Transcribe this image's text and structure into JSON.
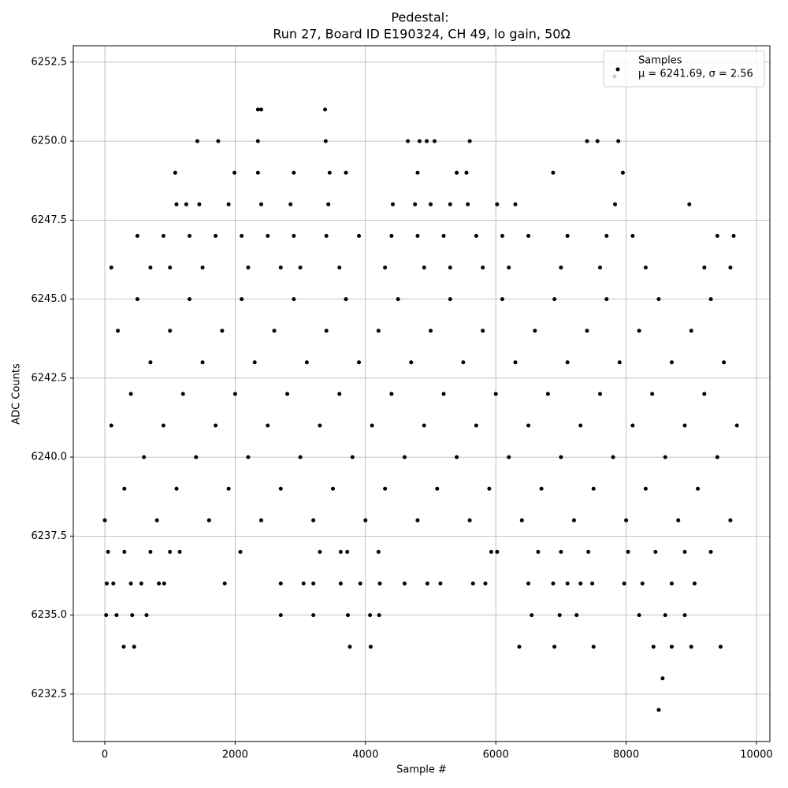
{
  "chart_data": {
    "type": "scatter",
    "title": "Pedestal:",
    "subtitle": "Run 27, Board ID E190324, CH 49, lo gain, 50Ω",
    "x_label": "Sample #",
    "y_label": "ADC Counts",
    "legend_note": "μ = 6241.69, σ = 2.56",
    "legend": "upper right",
    "grid": true,
    "xlim": [
      -484,
      10206
    ],
    "ylim": [
      6231.0,
      6253.02
    ],
    "xticks": [
      0,
      2000,
      4000,
      6000,
      8000,
      10000
    ],
    "yticks": [
      {
        "value": 6232.5,
        "label": "6232.5"
      },
      {
        "value": 6235,
        "label": "6235.0"
      },
      {
        "value": 6237.5,
        "label": "6237.5"
      },
      {
        "value": 6240,
        "label": "6240.0"
      },
      {
        "value": 6242.5,
        "label": "6242.5"
      },
      {
        "value": 6245,
        "label": "6245.0"
      },
      {
        "value": 6247.5,
        "label": "6247.5"
      },
      {
        "value": 6250,
        "label": "6250.0"
      },
      {
        "value": 6252.5,
        "label": "6252.5"
      }
    ],
    "x": [
      0,
      100,
      200,
      300,
      400,
      500,
      600,
      700,
      800,
      900,
      1000,
      1100,
      1200,
      1300,
      1400,
      1500,
      1600,
      1700,
      1800,
      1900,
      2000,
      2100,
      2200,
      2300,
      2400,
      2500,
      2600,
      2700,
      2800,
      2900,
      3000,
      3100,
      3200,
      3300,
      3400,
      3500,
      3600,
      3700,
      3800,
      3900,
      4000,
      4100,
      4200,
      4300,
      4400,
      4500,
      4600,
      4700,
      4800,
      4900,
      5000,
      5100,
      5200,
      5300,
      5400,
      5500,
      5600,
      5700,
      5800,
      5900,
      6000,
      6100,
      6200,
      6300,
      6400,
      6500,
      6600,
      6700,
      6800,
      6900,
      7000,
      7100,
      7200,
      7300,
      7400,
      7500,
      7600,
      7700,
      7800,
      7900,
      8000,
      8100,
      8200,
      8300,
      8400,
      8500,
      8600,
      8700,
      8800,
      8900,
      9000,
      9100,
      9200,
      9300,
      9400,
      9500,
      9600,
      9700,
      8500,
      8560,
      290,
      450,
      3760,
      4080,
      6360,
      6900,
      7500,
      8420,
      8700,
      9000,
      9450,
      20,
      180,
      420,
      640,
      2700,
      3200,
      3730,
      4070,
      4210,
      6550,
      6980,
      7240,
      8200,
      8600,
      8900,
      30,
      130,
      400,
      560,
      830,
      910,
      1840,
      2700,
      3050,
      3200,
      3620,
      3920,
      4220,
      4600,
      4950,
      5150,
      5650,
      5840,
      6500,
      6880,
      7100,
      7300,
      7480,
      7970,
      8250,
      8700,
      9050,
      50,
      300,
      700,
      1000,
      1150,
      2080,
      3300,
      3620,
      3720,
      4200,
      5930,
      6020,
      6650,
      7000,
      7420,
      8030,
      8450,
      8900,
      9300,
      100,
      700,
      1000,
      1500,
      2200,
      2700,
      3000,
      3600,
      4300,
      4900,
      5300,
      5800,
      6200,
      7000,
      7600,
      8300,
      9200,
      9600,
      500,
      900,
      1300,
      1700,
      2100,
      2500,
      2900,
      3400,
      3900,
      4400,
      4800,
      5200,
      5700,
      6100,
      6500,
      7100,
      7700,
      8100,
      9400,
      9650,
      1100,
      1250,
      1450,
      1900,
      2400,
      2850,
      3430,
      4420,
      4760,
      5000,
      5300,
      5570,
      6020,
      6300,
      7830,
      8970,
      1080,
      1990,
      2350,
      2900,
      3450,
      3700,
      4800,
      5400,
      5550,
      6880,
      7950,
      1420,
      1740,
      2350,
      3390,
      4650,
      4830,
      4940,
      5060,
      5600,
      7400,
      7560,
      7880,
      2350,
      2400,
      3380
    ],
    "series": [
      {
        "name": "Samples",
        "color": "#000000",
        "values": [
          6238,
          6241,
          6244,
          6239,
          6242,
          6245,
          6240,
          6243,
          6238,
          6241,
          6244,
          6239,
          6242,
          6245,
          6240,
          6243,
          6238,
          6241,
          6244,
          6239,
          6242,
          6245,
          6240,
          6243,
          6238,
          6241,
          6244,
          6239,
          6242,
          6245,
          6240,
          6243,
          6238,
          6241,
          6244,
          6239,
          6242,
          6245,
          6240,
          6243,
          6238,
          6241,
          6244,
          6239,
          6242,
          6245,
          6240,
          6243,
          6238,
          6241,
          6244,
          6239,
          6242,
          6245,
          6240,
          6243,
          6238,
          6241,
          6244,
          6239,
          6242,
          6245,
          6240,
          6243,
          6238,
          6241,
          6244,
          6239,
          6242,
          6245,
          6240,
          6243,
          6238,
          6241,
          6244,
          6239,
          6242,
          6245,
          6240,
          6243,
          6238,
          6241,
          6244,
          6239,
          6242,
          6245,
          6240,
          6243,
          6238,
          6241,
          6244,
          6239,
          6242,
          6245,
          6240,
          6243,
          6238,
          6241,
          6232,
          6233,
          6234,
          6234,
          6234,
          6234,
          6234,
          6234,
          6234,
          6234,
          6234,
          6234,
          6234,
          6235,
          6235,
          6235,
          6235,
          6235,
          6235,
          6235,
          6235,
          6235,
          6235,
          6235,
          6235,
          6235,
          6235,
          6235,
          6236,
          6236,
          6236,
          6236,
          6236,
          6236,
          6236,
          6236,
          6236,
          6236,
          6236,
          6236,
          6236,
          6236,
          6236,
          6236,
          6236,
          6236,
          6236,
          6236,
          6236,
          6236,
          6236,
          6236,
          6236,
          6236,
          6236,
          6237,
          6237,
          6237,
          6237,
          6237,
          6237,
          6237,
          6237,
          6237,
          6237,
          6237,
          6237,
          6237,
          6237,
          6237,
          6237,
          6237,
          6237,
          6237,
          6246,
          6246,
          6246,
          6246,
          6246,
          6246,
          6246,
          6246,
          6246,
          6246,
          6246,
          6246,
          6246,
          6246,
          6246,
          6246,
          6246,
          6246,
          6247,
          6247,
          6247,
          6247,
          6247,
          6247,
          6247,
          6247,
          6247,
          6247,
          6247,
          6247,
          6247,
          6247,
          6247,
          6247,
          6247,
          6247,
          6247,
          6247,
          6248,
          6248,
          6248,
          6248,
          6248,
          6248,
          6248,
          6248,
          6248,
          6248,
          6248,
          6248,
          6248,
          6248,
          6248,
          6248,
          6249,
          6249,
          6249,
          6249,
          6249,
          6249,
          6249,
          6249,
          6249,
          6249,
          6249,
          6250,
          6250,
          6250,
          6250,
          6250,
          6250,
          6250,
          6250,
          6250,
          6250,
          6250,
          6250,
          6251,
          6251,
          6251
        ]
      }
    ]
  }
}
